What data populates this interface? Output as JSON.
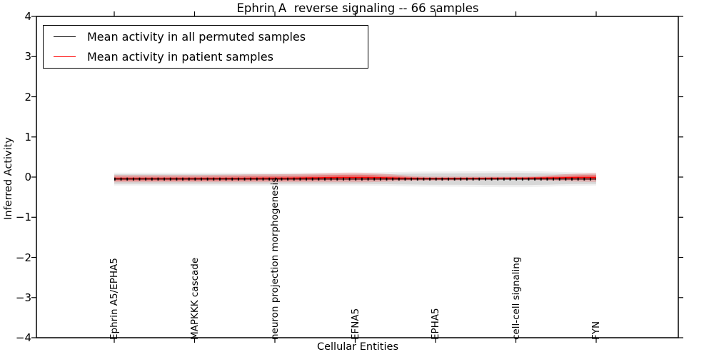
{
  "chart": {
    "title": "Ephrin A  reverse signaling -- 66 samples",
    "xlabel": "Cellular Entities",
    "ylabel": "Inferred Activity",
    "legend": {
      "items": [
        {
          "label": "Mean activity in all permuted samples",
          "color": "#000000"
        },
        {
          "label": "Mean activity in patient samples",
          "color": "#ff0000"
        }
      ]
    }
  },
  "chart_data": {
    "type": "line",
    "title": "Ephrin A  reverse signaling -- 66 samples",
    "xlabel": "Cellular Entities",
    "ylabel": "Inferred Activity",
    "ylim": [
      -4,
      4
    ],
    "y_ticks": [
      "4",
      "3",
      "2",
      "1",
      "0",
      "−1",
      "−2",
      "−3",
      "−4"
    ],
    "y_tick_values": [
      4,
      3,
      2,
      1,
      0,
      -1,
      -2,
      -3,
      -4
    ],
    "x_tick_labels": [
      "Ephrin A5/EPHA5",
      "MAPKKK cascade",
      "neuron projection morphogenesis",
      "EFNA5",
      "EPHA5",
      "cell-cell signaling",
      "FYN"
    ],
    "grid": false,
    "legend_position": "upper left",
    "series": [
      {
        "name": "Mean activity in all permuted samples",
        "color": "#000000",
        "mean": [
          -0.05,
          -0.05,
          -0.05,
          -0.05,
          -0.05,
          -0.05,
          -0.05
        ],
        "std": [
          0.12,
          0.12,
          0.12,
          0.12,
          0.14,
          0.15,
          0.12
        ]
      },
      {
        "name": "Mean activity in patient samples",
        "color": "#ff0000",
        "mean": [
          -0.04,
          -0.04,
          -0.03,
          -0.01,
          -0.04,
          -0.03,
          -0.01
        ],
        "std": [
          0.09,
          0.09,
          0.1,
          0.12,
          0.05,
          0.04,
          0.11
        ]
      }
    ]
  }
}
